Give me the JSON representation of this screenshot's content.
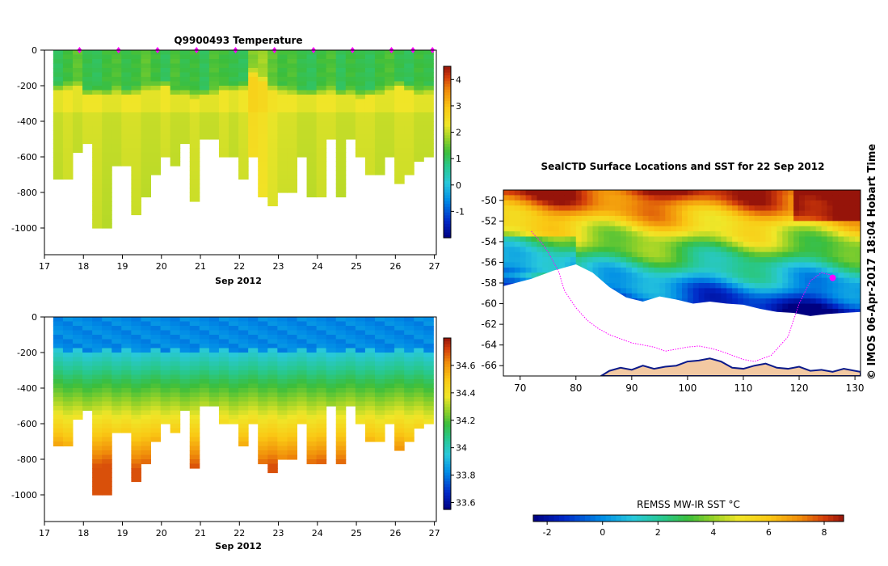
{
  "page": {
    "title": "Q9900493  Temperature",
    "footer_stamp": "© IMOS 06-Apr-2017 18:04 Hobart Time"
  },
  "chart_data": [
    {
      "type": "heatmap",
      "panel": "temperature",
      "title": "Q9900493  Temperature",
      "xlabel": "Sep 2012",
      "ylabel": "",
      "xlim": [
        17,
        27.05
      ],
      "ylim": [
        -1150,
        0
      ],
      "x_ticks": [
        "17",
        "18",
        "19",
        "20",
        "21",
        "22",
        "23",
        "24",
        "25",
        "26",
        "27"
      ],
      "y_ticks": [
        "0",
        "-200",
        "-400",
        "-600",
        "-800",
        "-1000"
      ],
      "colorbar": {
        "min": -2,
        "max": 4.5,
        "ticks": [
          "4",
          "3",
          "2",
          "1",
          "0",
          "-1"
        ],
        "tick_values": [
          4,
          3,
          2,
          1,
          0,
          -1
        ]
      },
      "profile_times": [
        17.35,
        17.6,
        17.85,
        18.1,
        18.35,
        18.6,
        18.85,
        19.1,
        19.35,
        19.6,
        19.85,
        20.1,
        20.35,
        20.6,
        20.85,
        21.1,
        21.35,
        21.6,
        21.85,
        22.1,
        22.35,
        22.6,
        22.85,
        23.1,
        23.35,
        23.6,
        23.85,
        24.1,
        24.35,
        24.6,
        24.85,
        25.1,
        25.35,
        25.6,
        25.85,
        26.1,
        26.35,
        26.6,
        26.85
      ],
      "max_depths": [
        720,
        720,
        560,
        510,
        980,
        980,
        640,
        640,
        920,
        810,
        700,
        590,
        640,
        510,
        830,
        500,
        500,
        590,
        600,
        720,
        600,
        820,
        860,
        780,
        780,
        580,
        820,
        820,
        500,
        810,
        500,
        600,
        700,
        700,
        600,
        740,
        700,
        620,
        600
      ],
      "surface_temp": [
        1.0,
        1.2,
        1.4,
        1.1,
        1.0,
        1.2,
        1.3,
        1.1,
        1.2,
        1.4,
        1.2,
        1.0,
        1.3,
        1.1,
        1.2,
        1.0,
        1.3,
        1.2,
        1.1,
        1.0,
        1.6,
        1.8,
        1.4,
        1.2,
        1.3,
        1.1,
        1.0,
        1.2,
        1.3,
        1.0,
        1.2,
        1.1,
        1.0,
        1.2,
        1.3,
        1.1,
        1.0,
        1.2,
        1.1
      ],
      "mixed_layer_depth": [
        200,
        190,
        180,
        230,
        220,
        230,
        210,
        230,
        220,
        200,
        190,
        180,
        230,
        220,
        240,
        230,
        220,
        200,
        200,
        190,
        110,
        150,
        200,
        210,
        220,
        230,
        230,
        220,
        210,
        230,
        220,
        240,
        230,
        220,
        200,
        180,
        200,
        220,
        210
      ],
      "deep_temp": [
        2.1,
        2.2,
        2.1,
        2.2,
        2.2,
        2.1,
        2.1,
        2.2,
        2.2,
        2.1,
        2.1,
        2.2,
        2.1,
        2.1,
        2.2,
        2.1,
        2.1,
        2.2,
        2.1,
        2.2,
        2.6,
        2.5,
        2.3,
        2.2,
        2.2,
        2.1,
        2.1,
        2.2,
        2.2,
        2.1,
        2.1,
        2.2,
        2.2,
        2.1,
        2.1,
        2.2,
        2.2,
        2.1,
        2.1
      ],
      "surface_markers": [
        17.9,
        18.9,
        19.9,
        20.9,
        21.9,
        22.9,
        23.9,
        24.9,
        25.9,
        26.45,
        26.95
      ]
    },
    {
      "type": "heatmap",
      "panel": "salinity",
      "title": "",
      "xlabel": "Sep 2012",
      "ylabel": "",
      "xlim": [
        17,
        27.05
      ],
      "ylim": [
        -1150,
        0
      ],
      "x_ticks": [
        "17",
        "18",
        "19",
        "20",
        "21",
        "22",
        "23",
        "24",
        "25",
        "26",
        "27"
      ],
      "y_ticks": [
        "0",
        "-200",
        "-400",
        "-600",
        "-800",
        "-1000"
      ],
      "colorbar": {
        "min": 33.55,
        "max": 34.8,
        "ticks": [
          "34.6",
          "34.4",
          "34.2",
          "34",
          "33.8",
          "33.6"
        ],
        "tick_values": [
          34.6,
          34.4,
          34.2,
          34,
          33.8,
          33.6
        ]
      },
      "surface_salinity": 33.8,
      "halocline_depth": 220,
      "deep_salinity": 34.7
    },
    {
      "type": "map",
      "title": "SealCTD Surface Locations and SST for 22 Sep 2012",
      "lon_range": [
        67,
        131
      ],
      "lat_range": [
        -67,
        -49
      ],
      "x_ticks": [
        "70",
        "80",
        "90",
        "100",
        "110",
        "120",
        "130"
      ],
      "y_ticks": [
        "-50",
        "-52",
        "-54",
        "-56",
        "-58",
        "-60",
        "-62",
        "-64",
        "-66"
      ],
      "colorbar": {
        "label": "REMSS MW-IR SST °C",
        "min": -2.5,
        "max": 8.7,
        "ticks": [
          "-2",
          "0",
          "2",
          "4",
          "6",
          "8"
        ],
        "tick_values": [
          -2,
          0,
          2,
          4,
          6,
          8
        ]
      },
      "track_points_lon": [
        72,
        73,
        74,
        75,
        76,
        77,
        77.5,
        78,
        79,
        80,
        81,
        82,
        84,
        86,
        88,
        90,
        92,
        94,
        96,
        98,
        100,
        102,
        104,
        106,
        108,
        110,
        112,
        115,
        118,
        120,
        122,
        124,
        125.5,
        126,
        126.5
      ],
      "track_points_lat": [
        -53,
        -53.6,
        -54.2,
        -55,
        -56,
        -57,
        -58,
        -58.8,
        -59.6,
        -60.4,
        -61,
        -61.6,
        -62.4,
        -63,
        -63.4,
        -63.8,
        -64,
        -64.2,
        -64.6,
        -64.4,
        -64.2,
        -64.1,
        -64.3,
        -64.6,
        -65,
        -65.4,
        -65.6,
        -65,
        -63.2,
        -60,
        -57.8,
        -57,
        -57.2,
        -57.4,
        -57.6
      ],
      "latest_position": [
        126,
        -57.5
      ]
    }
  ]
}
